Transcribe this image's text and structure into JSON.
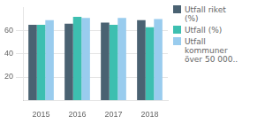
{
  "chart_data": {
    "type": "bar",
    "categories": [
      "2015",
      "2016",
      "2017",
      "2018"
    ],
    "series": [
      {
        "name": "Utfall riket\n(%)",
        "color": "#4a6272",
        "values": [
          65,
          66,
          67,
          69
        ]
      },
      {
        "name": "Utfall (%)",
        "color": "#3dbfb0",
        "values": [
          65,
          72,
          65,
          63
        ]
      },
      {
        "name": "Utfall\nkommuner\növer 50 000..",
        "color": "#99ccee",
        "values": [
          69,
          71,
          71,
          70
        ]
      }
    ],
    "ylim": [
      0,
      80
    ],
    "yticks": [
      20,
      40,
      60
    ],
    "grid": true,
    "legend": "right"
  }
}
